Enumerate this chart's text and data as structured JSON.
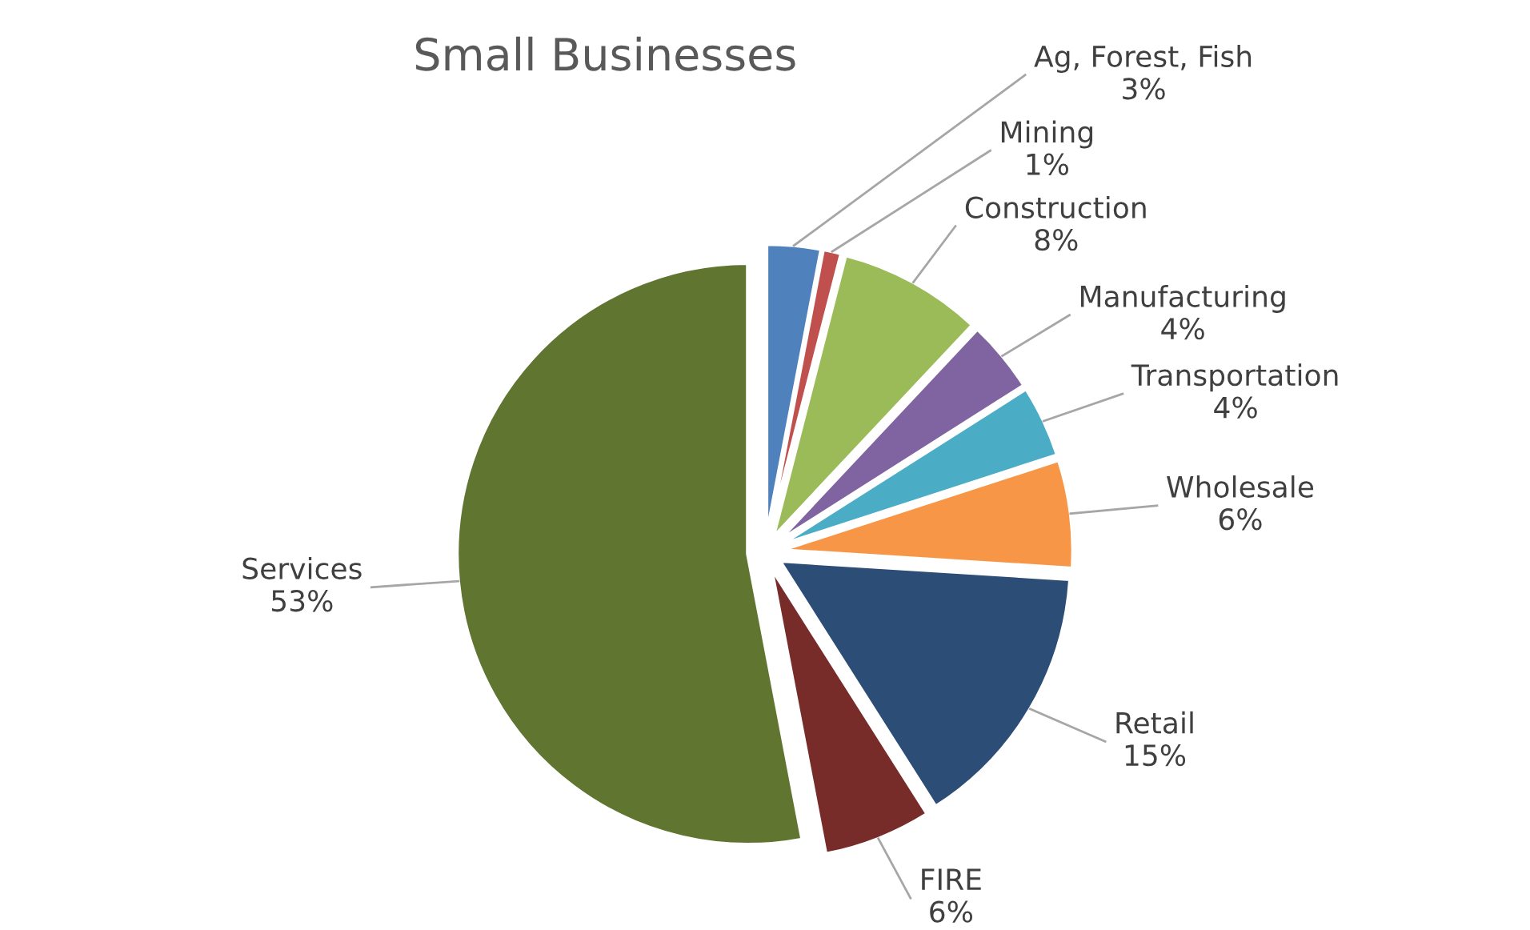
{
  "chart_data": {
    "type": "pie",
    "title": "Small Businesses",
    "categories": [
      "Ag, Forest, Fish",
      "Mining",
      "Construction",
      "Manufacturing",
      "Transportation",
      "Wholesale",
      "Retail",
      "FIRE",
      "Services"
    ],
    "values": [
      3,
      1,
      8,
      4,
      4,
      6,
      15,
      6,
      53
    ],
    "colors": [
      "#4f81bd",
      "#c0504d",
      "#9bbb59",
      "#8064a2",
      "#4bacc6",
      "#f79646",
      "#2c4d75",
      "#772c2a",
      "#5f7530"
    ],
    "value_labels": [
      "3%",
      "1%",
      "8%",
      "4%",
      "4%",
      "6%",
      "15%",
      "6%",
      "53%"
    ],
    "legend": false
  }
}
